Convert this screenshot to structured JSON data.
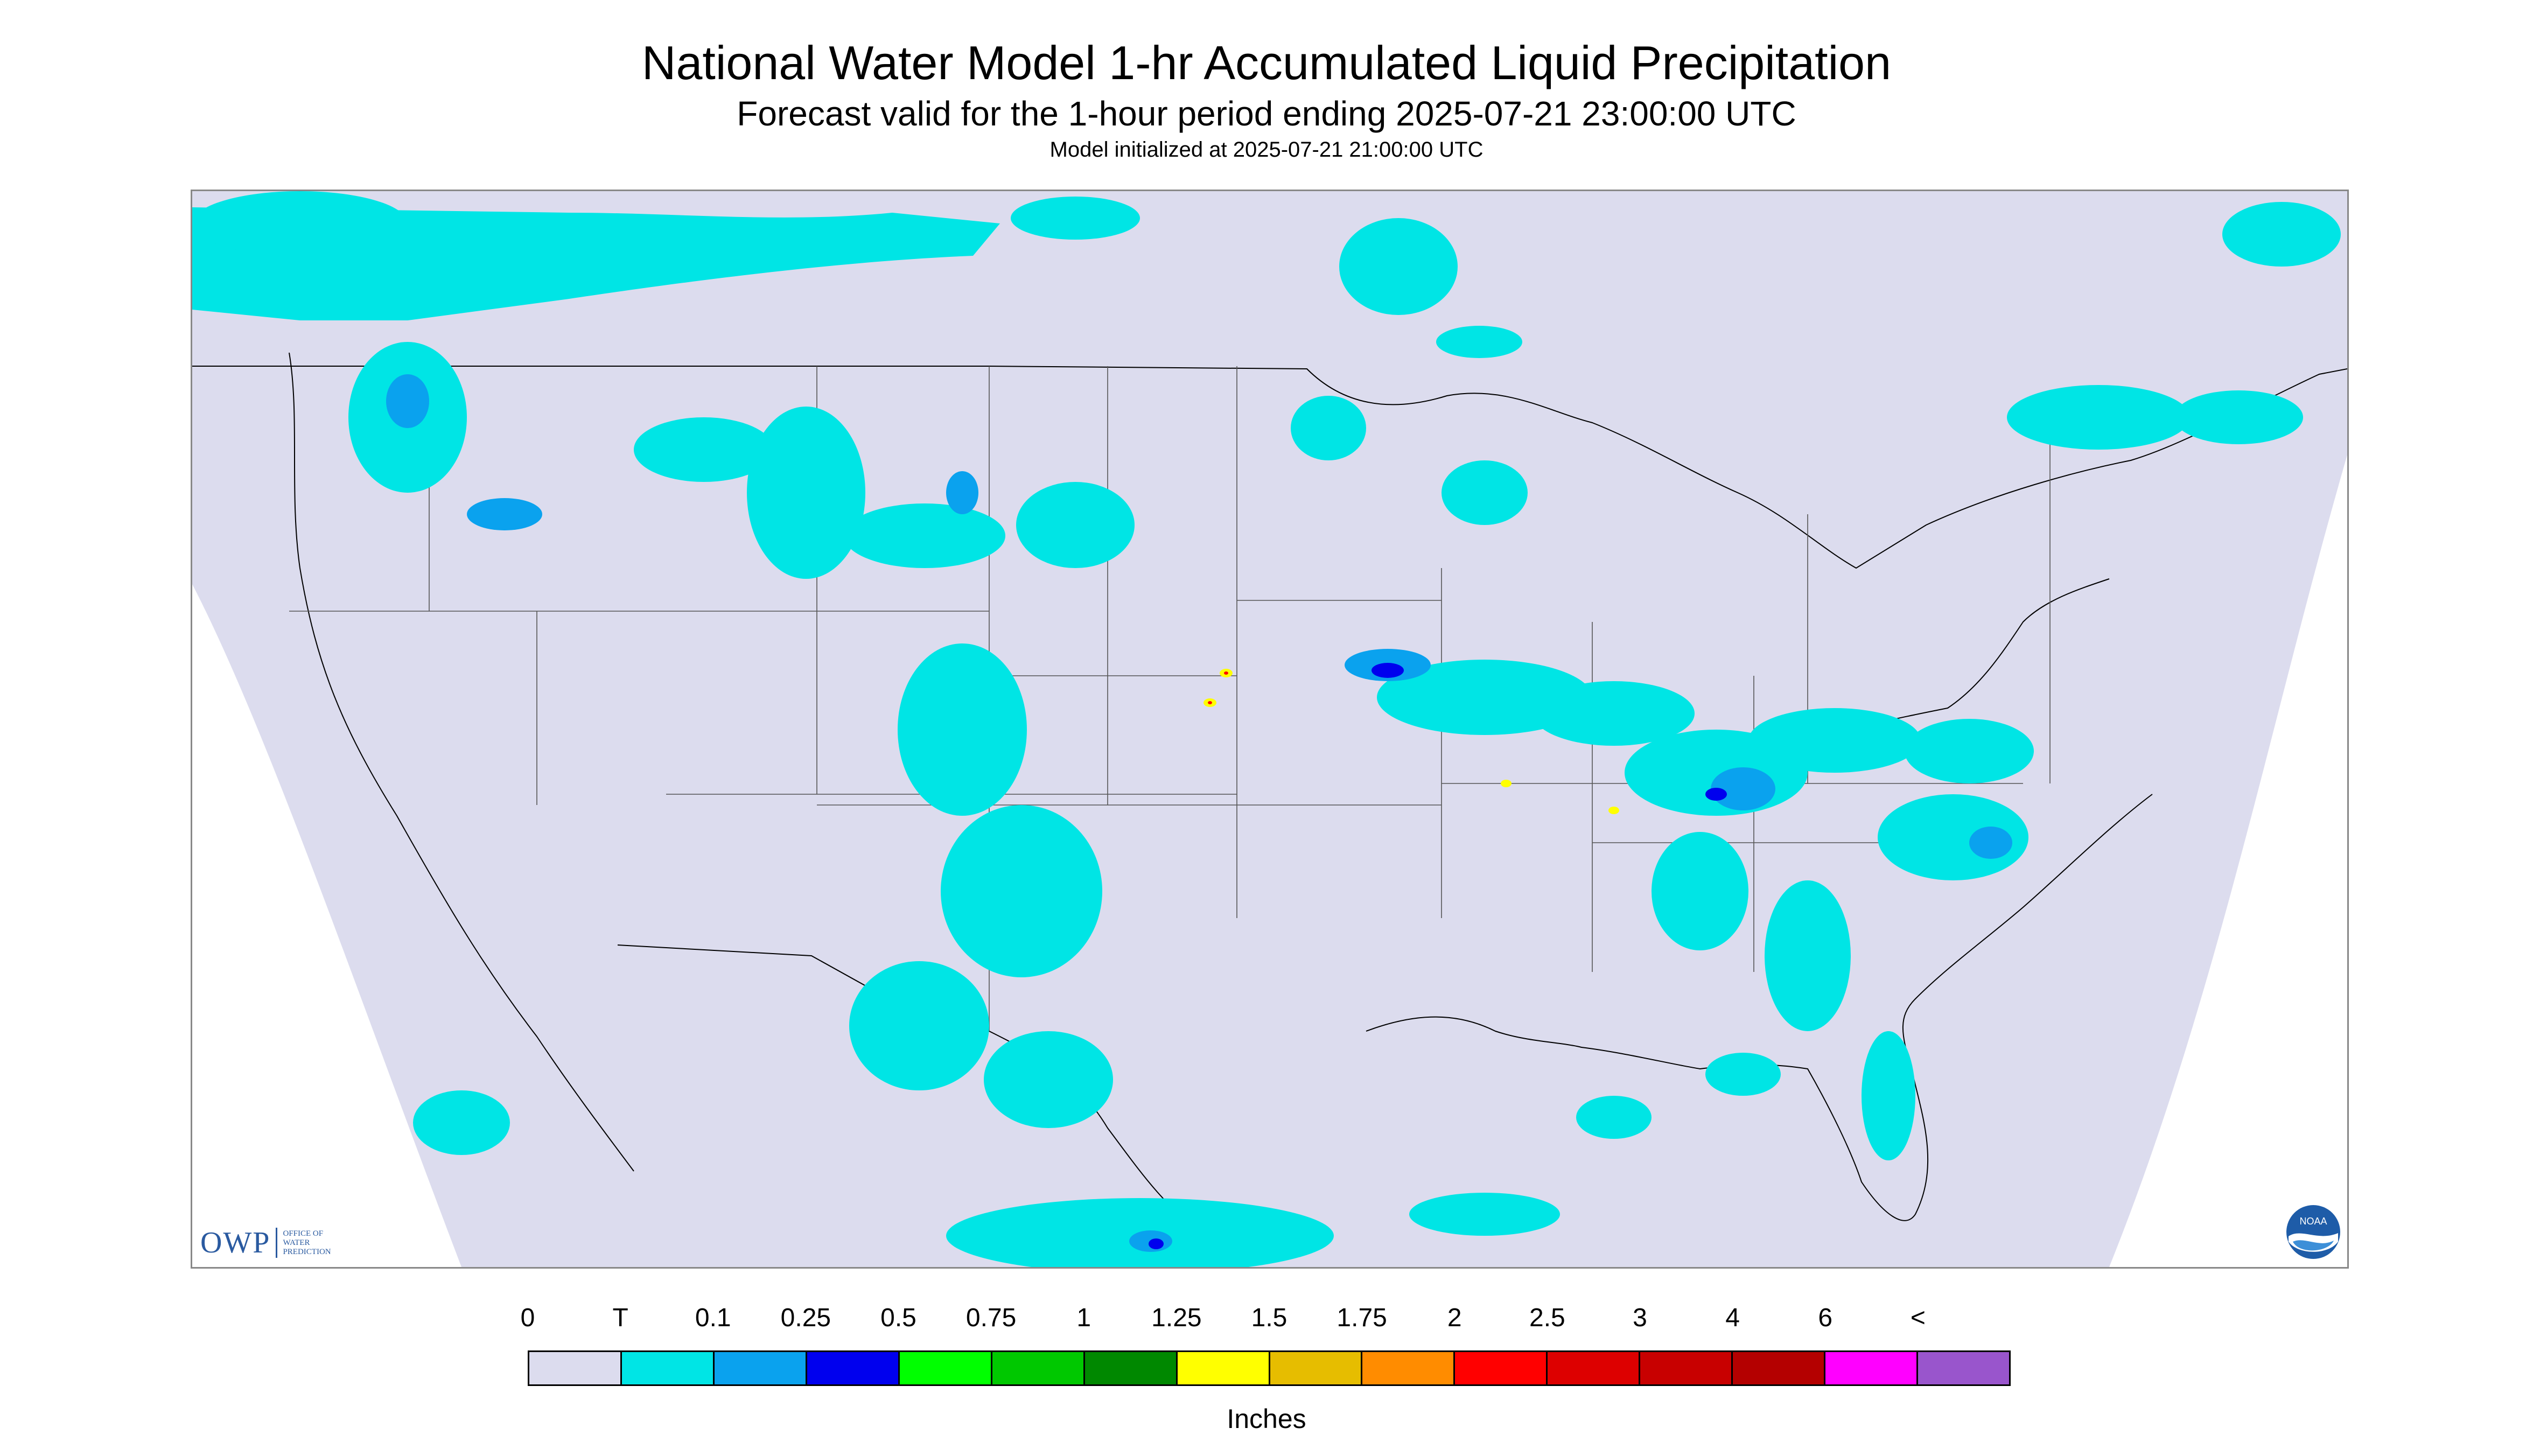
{
  "header": {
    "title": "National Water Model 1-hr Accumulated Liquid Precipitation",
    "subtitle": "Forecast valid for the 1-hour period ending 2025-07-21 23:00:00 UTC",
    "init": "Model initialized at 2025-07-21 21:00:00 UTC"
  },
  "logos": {
    "owp_abbrev": "OWP",
    "owp_line1": "OFFICE OF",
    "owp_line2": "WATER",
    "owp_line3": "PREDICTION",
    "noaa_text": "NOAA"
  },
  "legend": {
    "labels": [
      "0",
      "T",
      "0.1",
      "0.25",
      "0.5",
      "0.75",
      "1",
      "1.25",
      "1.5",
      "1.75",
      "2",
      "2.5",
      "3",
      "4",
      "6",
      "<"
    ],
    "colors": [
      "#dcdcee",
      "#00e5e5",
      "#0aa2ee",
      "#0000ee",
      "#00ff00",
      "#00c800",
      "#008800",
      "#ffff00",
      "#e6bd00",
      "#ff8c00",
      "#ff0000",
      "#dd0000",
      "#c80000",
      "#b40000",
      "#ff00ff",
      "#9955cc"
    ],
    "units": "Inches"
  },
  "colors": {
    "domain_fill": "#dcdcee",
    "outside_fill": "#ffffff",
    "boundary_line": "#000000"
  }
}
